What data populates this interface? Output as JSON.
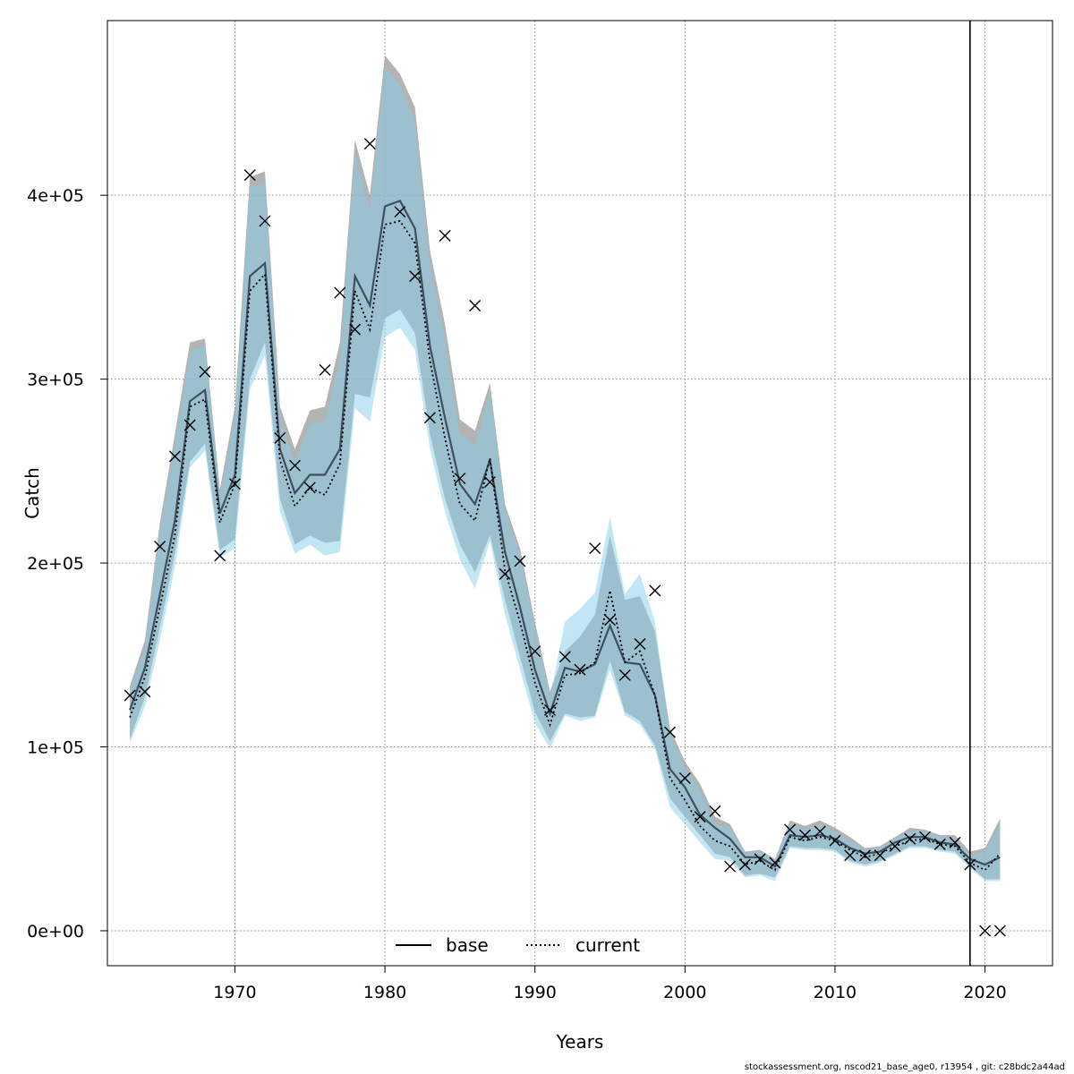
{
  "chart_data": {
    "type": "line",
    "xlabel": "Years",
    "ylabel": "Catch",
    "xlim": [
      1961.5,
      2024.5
    ],
    "ylim": [
      -19000,
      495000
    ],
    "x_ticks": [
      1970,
      1980,
      1990,
      2000,
      2010,
      2020
    ],
    "x_tick_labels": [
      "1970",
      "1980",
      "1990",
      "2000",
      "2010",
      "2020"
    ],
    "y_ticks": [
      0,
      100000,
      200000,
      300000,
      400000
    ],
    "y_tick_labels": [
      "0e+00",
      "1e+05",
      "2e+05",
      "3e+05",
      "4e+05"
    ],
    "grid": true,
    "vline_year": 2019,
    "legend": {
      "placement": "bottom",
      "entries": [
        {
          "label": "base",
          "style": "solid",
          "color": "#000000"
        },
        {
          "label": "current",
          "style": "dotted",
          "color": "#000000"
        }
      ]
    },
    "years": [
      1963,
      1964,
      1965,
      1966,
      1967,
      1968,
      1969,
      1970,
      1971,
      1972,
      1973,
      1974,
      1975,
      1976,
      1977,
      1978,
      1979,
      1980,
      1981,
      1982,
      1983,
      1984,
      1985,
      1986,
      1987,
      1988,
      1989,
      1990,
      1991,
      1992,
      1993,
      1994,
      1995,
      1996,
      1997,
      1998,
      1999,
      2000,
      2001,
      2002,
      2003,
      2004,
      2005,
      2006,
      2007,
      2008,
      2009,
      2010,
      2011,
      2012,
      2013,
      2014,
      2015,
      2016,
      2017,
      2018,
      2019,
      2020,
      2021
    ],
    "series": [
      {
        "name": "base",
        "color": "#000000",
        "band_color": "#999999",
        "values": [
          120000,
          143000,
          183000,
          223000,
          288000,
          294000,
          227000,
          248000,
          356000,
          363000,
          262000,
          238000,
          248000,
          248000,
          262000,
          356000,
          340000,
          394000,
          397000,
          382000,
          318000,
          279000,
          243000,
          232000,
          256000,
          206000,
          176000,
          142000,
          118000,
          143000,
          141000,
          145000,
          166000,
          146000,
          145000,
          128000,
          88000,
          78000,
          63000,
          56000,
          50000,
          40000,
          40000,
          35000,
          52000,
          51000,
          52000,
          50000,
          45000,
          42000,
          43000,
          48000,
          51000,
          51000,
          48000,
          47000,
          39000,
          36000,
          40000
        ],
        "upper": [
          133000,
          158000,
          222000,
          270000,
          320000,
          322000,
          240000,
          285000,
          410000,
          413000,
          285000,
          262000,
          283000,
          285000,
          320000,
          430000,
          400000,
          476000,
          466000,
          448000,
          370000,
          330000,
          278000,
          272000,
          298000,
          232000,
          208000,
          168000,
          130000,
          152000,
          160000,
          172000,
          215000,
          180000,
          182000,
          163000,
          110000,
          92000,
          80000,
          62000,
          58000,
          43000,
          44000,
          39000,
          60000,
          57000,
          60000,
          56000,
          51000,
          45000,
          46000,
          51000,
          56000,
          55000,
          52000,
          52000,
          43000,
          45000,
          61000
        ],
        "lower": [
          104000,
          127000,
          165000,
          205000,
          255000,
          265000,
          207000,
          213000,
          300000,
          320000,
          235000,
          210000,
          215000,
          211000,
          212000,
          292000,
          290000,
          333000,
          338000,
          325000,
          270000,
          235000,
          210000,
          195000,
          215000,
          180000,
          149000,
          119000,
          103000,
          118000,
          116000,
          117000,
          147000,
          119000,
          114000,
          101000,
          72000,
          62000,
          52000,
          42000,
          40000,
          30000,
          31000,
          29000,
          46000,
          45000,
          45000,
          44000,
          38000,
          36000,
          38000,
          42000,
          46000,
          46000,
          44000,
          43000,
          35000,
          28000,
          28000
        ]
      },
      {
        "name": "current",
        "color": "#000000",
        "band_color": "#87ceeb",
        "values": [
          116000,
          138000,
          176000,
          215000,
          285000,
          289000,
          222000,
          243000,
          348000,
          357000,
          256000,
          231000,
          241000,
          237000,
          254000,
          348000,
          327000,
          384000,
          386000,
          374000,
          310000,
          268000,
          232000,
          223000,
          257000,
          196000,
          168000,
          135000,
          112000,
          139000,
          140000,
          146000,
          185000,
          146000,
          152000,
          128000,
          83000,
          71000,
          57000,
          49000,
          46000,
          36000,
          38000,
          33000,
          51000,
          49000,
          51000,
          49000,
          44000,
          40000,
          42000,
          46000,
          49000,
          50000,
          47000,
          46000,
          37000,
          33000,
          42000
        ],
        "upper": [
          130000,
          155000,
          218000,
          265000,
          315000,
          318000,
          236000,
          280000,
          404000,
          407000,
          278000,
          255000,
          276000,
          277000,
          311000,
          422000,
          392000,
          470000,
          460000,
          440000,
          362000,
          322000,
          270000,
          264000,
          293000,
          229000,
          205000,
          165000,
          127000,
          168000,
          175000,
          184000,
          225000,
          183000,
          194000,
          168000,
          108000,
          89000,
          76000,
          58000,
          56000,
          42000,
          43000,
          38000,
          58000,
          55000,
          58000,
          54000,
          49000,
          44000,
          45000,
          50000,
          54000,
          54000,
          51000,
          50000,
          41000,
          43000,
          58000
        ],
        "lower": [
          102000,
          122000,
          158000,
          198000,
          252000,
          261000,
          203000,
          208000,
          294000,
          313000,
          228000,
          205000,
          210000,
          204000,
          206000,
          284000,
          277000,
          323000,
          328000,
          316000,
          262000,
          228000,
          202000,
          186000,
          212000,
          172000,
          142000,
          113000,
          99000,
          117000,
          114000,
          116000,
          142000,
          117000,
          112000,
          99000,
          67000,
          58000,
          48000,
          39000,
          38000,
          29000,
          30000,
          27000,
          45000,
          44000,
          44000,
          43000,
          37000,
          35000,
          37000,
          41000,
          45000,
          45000,
          43000,
          42000,
          34000,
          27000,
          27000
        ]
      }
    ],
    "observed": {
      "name": "observed",
      "years": [
        1963,
        1964,
        1965,
        1966,
        1967,
        1968,
        1969,
        1970,
        1971,
        1972,
        1973,
        1974,
        1975,
        1976,
        1977,
        1978,
        1979,
        1981,
        1982,
        1983,
        1984,
        1985,
        1986,
        1987,
        1988,
        1989,
        1990,
        1991,
        1992,
        1993,
        1994,
        1995,
        1996,
        1997,
        1998,
        1999,
        2000,
        2001,
        2002,
        2003,
        2004,
        2005,
        2006,
        2007,
        2008,
        2009,
        2010,
        2011,
        2012,
        2013,
        2014,
        2015,
        2016,
        2017,
        2018,
        2019,
        2020,
        2021
      ],
      "values": [
        128000,
        130000,
        209000,
        258000,
        275000,
        304000,
        204000,
        243000,
        411000,
        386000,
        268000,
        253000,
        241000,
        305000,
        347000,
        327000,
        428000,
        391000,
        356000,
        279000,
        378000,
        246000,
        340000,
        244000,
        194000,
        201000,
        152000,
        120000,
        149000,
        142000,
        208000,
        169000,
        139000,
        156000,
        185000,
        108000,
        83000,
        62000,
        65000,
        35000,
        36000,
        39000,
        37000,
        55000,
        52000,
        54000,
        49000,
        41000,
        41000,
        41000,
        46000,
        50000,
        51000,
        47000,
        48000,
        36000,
        0,
        0
      ]
    }
  },
  "footer": "stockassessment.org, nscod21_base_age0, r13954 , git: c28bdc2a44ad"
}
